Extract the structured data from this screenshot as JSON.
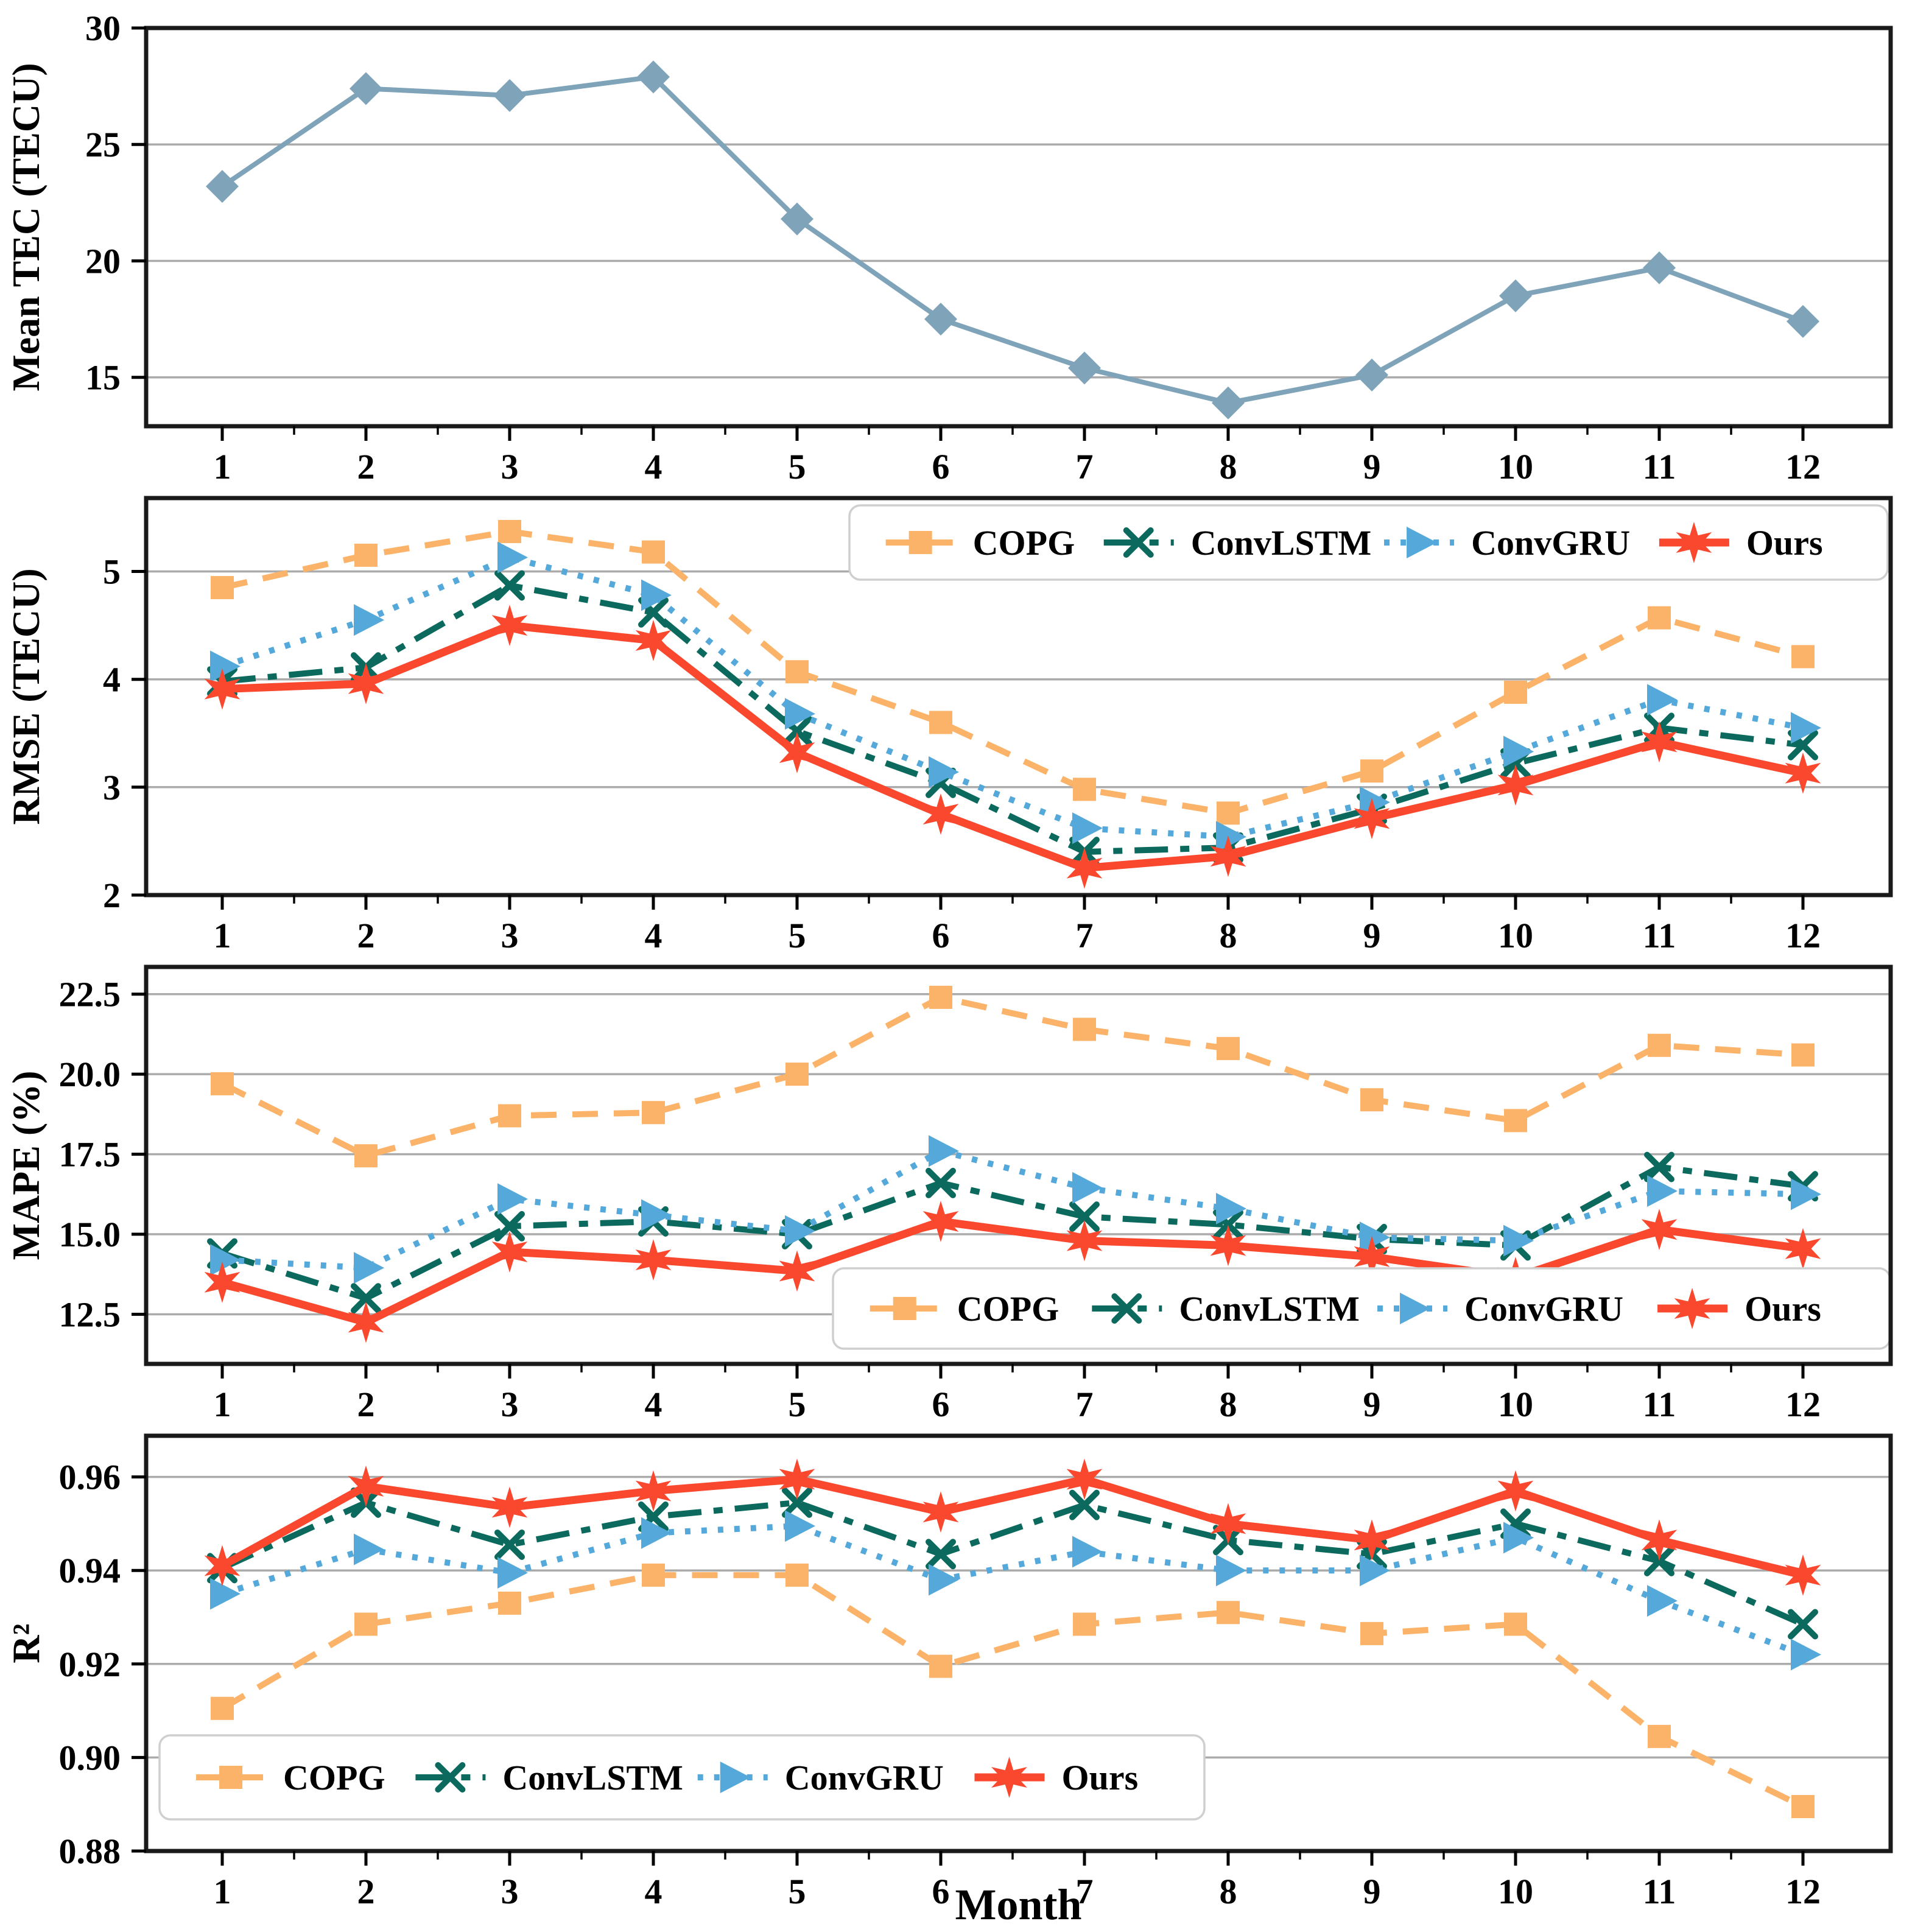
{
  "figure": {
    "xlabel": "Month",
    "month_labels": [
      "1",
      "2",
      "3",
      "4",
      "5",
      "6",
      "7",
      "8",
      "9",
      "10",
      "11",
      "12"
    ]
  },
  "palette": {
    "meantec": "#7FA3B9",
    "copg": "#FBB369",
    "convlstm": "#0B6A5D",
    "convgru": "#55A9DA",
    "ours": "#F9482E",
    "grid": "#ABABAB",
    "legend_border": "#CFCFCF",
    "spine": "#1A1A1A"
  },
  "chart_data": [
    {
      "type": "line",
      "ylabel": "Mean TEC (TECU)",
      "x": [
        1,
        2,
        3,
        4,
        5,
        6,
        7,
        8,
        9,
        10,
        11,
        12
      ],
      "ylim": [
        12.9,
        30.0
      ],
      "yticks": [
        15,
        20,
        25,
        30
      ],
      "ytick_labels": [
        "15",
        "20",
        "25",
        "30"
      ],
      "grid": true,
      "legend": null,
      "series": [
        {
          "id": "mean_tec",
          "color": "meantec",
          "marker": "diamond",
          "linestyle": "solid",
          "linewidth": 8,
          "values": [
            23.2,
            27.4,
            27.1,
            27.9,
            21.8,
            17.5,
            15.4,
            13.9,
            15.1,
            18.5,
            19.7,
            17.4
          ]
        }
      ]
    },
    {
      "type": "line",
      "ylabel": "RMSE (TECU)",
      "x": [
        1,
        2,
        3,
        4,
        5,
        6,
        7,
        8,
        9,
        10,
        11,
        12
      ],
      "ylim": [
        2.0,
        5.68
      ],
      "yticks": [
        2,
        3,
        4,
        5
      ],
      "ytick_labels": [
        "2",
        "3",
        "4",
        "5"
      ],
      "grid": true,
      "legend": "top-right",
      "series": [
        {
          "id": "copg",
          "label": "COPG",
          "color": "copg",
          "marker": "square",
          "linestyle": "dashed",
          "linewidth": 10,
          "values": [
            4.85,
            5.15,
            5.37,
            5.18,
            4.07,
            3.6,
            2.98,
            2.76,
            3.15,
            3.88,
            4.57,
            4.21
          ]
        },
        {
          "id": "convlstm",
          "label": "ConvLSTM",
          "color": "convlstm",
          "marker": "x",
          "linestyle": "dashdot",
          "linewidth": 10,
          "values": [
            3.98,
            4.11,
            4.87,
            4.62,
            3.52,
            3.04,
            2.4,
            2.44,
            2.8,
            3.22,
            3.55,
            3.39
          ]
        },
        {
          "id": "convgru",
          "label": "ConvGRU",
          "color": "convgru",
          "marker": "triangle-right",
          "linestyle": "dotted",
          "linewidth": 10,
          "values": [
            4.12,
            4.55,
            5.13,
            4.78,
            3.68,
            3.14,
            2.62,
            2.54,
            2.86,
            3.33,
            3.81,
            3.55
          ]
        },
        {
          "id": "ours",
          "label": "Ours",
          "color": "ours",
          "marker": "star",
          "linestyle": "solid",
          "linewidth": 13,
          "values": [
            3.91,
            3.96,
            4.5,
            4.36,
            3.32,
            2.75,
            2.25,
            2.36,
            2.71,
            3.02,
            3.42,
            3.13
          ]
        }
      ]
    },
    {
      "type": "line",
      "ylabel": "MAPE (%)",
      "x": [
        1,
        2,
        3,
        4,
        5,
        6,
        7,
        8,
        9,
        10,
        11,
        12
      ],
      "ylim": [
        10.95,
        23.35
      ],
      "yticks": [
        12.5,
        15.0,
        17.5,
        20.0,
        22.5
      ],
      "ytick_labels": [
        "12.5",
        "15.0",
        "17.5",
        "20.0",
        "22.5"
      ],
      "grid": true,
      "legend": "bottom-right",
      "series": [
        {
          "id": "copg",
          "label": "COPG",
          "color": "copg",
          "marker": "square",
          "linestyle": "dashed",
          "linewidth": 10,
          "values": [
            19.7,
            17.45,
            18.7,
            18.8,
            20.0,
            22.4,
            21.4,
            20.8,
            19.2,
            18.55,
            20.9,
            20.6
          ]
        },
        {
          "id": "convlstm",
          "label": "ConvLSTM",
          "color": "convlstm",
          "marker": "x",
          "linestyle": "dashdot",
          "linewidth": 10,
          "values": [
            14.4,
            13.0,
            15.25,
            15.4,
            15.0,
            16.6,
            15.55,
            15.3,
            14.85,
            14.65,
            17.1,
            16.5
          ]
        },
        {
          "id": "convgru",
          "label": "ConvGRU",
          "color": "convgru",
          "marker": "triangle-right",
          "linestyle": "dotted",
          "linewidth": 10,
          "values": [
            14.2,
            13.95,
            16.1,
            15.6,
            15.1,
            17.6,
            16.45,
            15.8,
            14.9,
            14.8,
            16.35,
            16.25
          ]
        },
        {
          "id": "ours",
          "label": "Ours",
          "color": "ours",
          "marker": "star",
          "linestyle": "solid",
          "linewidth": 13,
          "values": [
            13.5,
            12.25,
            14.45,
            14.2,
            13.85,
            15.4,
            14.8,
            14.65,
            14.3,
            13.65,
            15.15,
            14.55
          ]
        }
      ]
    },
    {
      "type": "line",
      "ylabel": "R²",
      "x": [
        1,
        2,
        3,
        4,
        5,
        6,
        7,
        8,
        9,
        10,
        11,
        12
      ],
      "ylim": [
        0.88,
        0.9688
      ],
      "yticks": [
        0.88,
        0.9,
        0.92,
        0.94,
        0.96
      ],
      "ytick_labels": [
        "0.88",
        "0.90",
        "0.92",
        "0.94",
        "0.96"
      ],
      "grid": true,
      "legend": "bottom-left",
      "series": [
        {
          "id": "copg",
          "label": "COPG",
          "color": "copg",
          "marker": "square",
          "linestyle": "dashed",
          "linewidth": 10,
          "values": [
            0.9105,
            0.9285,
            0.933,
            0.939,
            0.939,
            0.9195,
            0.9285,
            0.931,
            0.9265,
            0.9285,
            0.9045,
            0.8895
          ]
        },
        {
          "id": "convlstm",
          "label": "ConvLSTM",
          "color": "convlstm",
          "marker": "x",
          "linestyle": "dashdot",
          "linewidth": 10,
          "values": [
            0.9405,
            0.9545,
            0.9455,
            0.9515,
            0.9545,
            0.9435,
            0.954,
            0.9465,
            0.9435,
            0.95,
            0.942,
            0.9285
          ]
        },
        {
          "id": "convgru",
          "label": "ConvGRU",
          "color": "convgru",
          "marker": "triangle-right",
          "linestyle": "dotted",
          "linewidth": 10,
          "values": [
            0.935,
            0.9445,
            0.9395,
            0.948,
            0.9495,
            0.938,
            0.944,
            0.94,
            0.94,
            0.947,
            0.9335,
            0.922
          ]
        },
        {
          "id": "ours",
          "label": "Ours",
          "color": "ours",
          "marker": "star",
          "linestyle": "solid",
          "linewidth": 13,
          "values": [
            0.941,
            0.958,
            0.9535,
            0.957,
            0.9595,
            0.9525,
            0.9595,
            0.95,
            0.9465,
            0.957,
            0.9465,
            0.939
          ]
        }
      ]
    }
  ]
}
